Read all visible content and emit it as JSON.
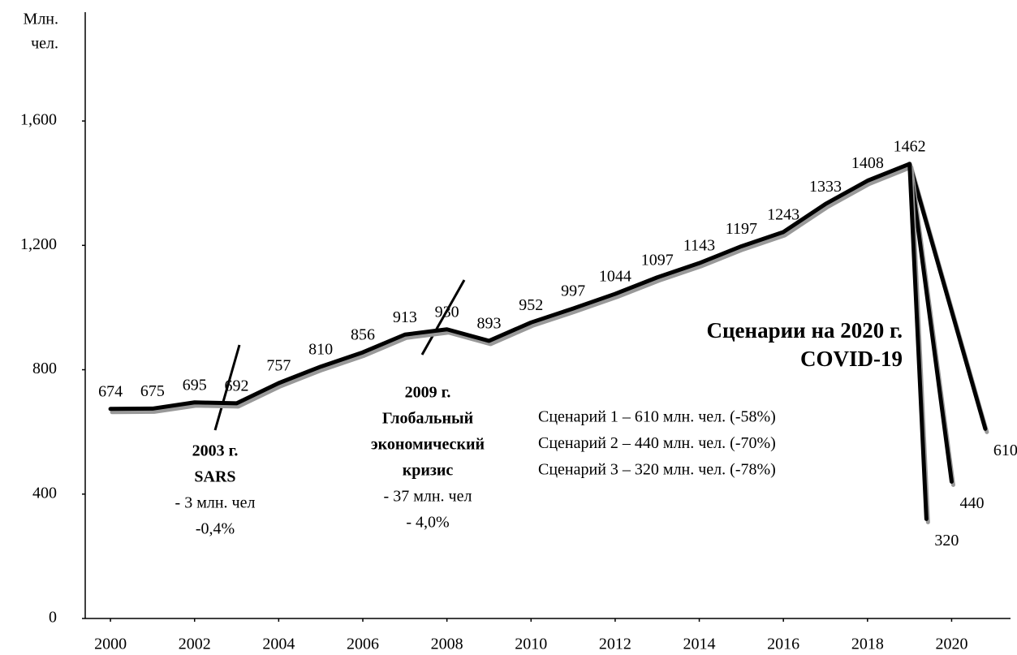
{
  "chart_data": {
    "type": "line",
    "ylabel": [
      "Млн.",
      "чел."
    ],
    "x": [
      2000,
      2001,
      2002,
      2003,
      2004,
      2005,
      2006,
      2007,
      2008,
      2009,
      2010,
      2011,
      2012,
      2013,
      2014,
      2015,
      2016,
      2017,
      2018,
      2019
    ],
    "series": [
      {
        "color": "#000000",
        "values": [
          674,
          675,
          695,
          692,
          757,
          810,
          856,
          913,
          930,
          893,
          952,
          997,
          1044,
          1097,
          1143,
          1197,
          1243,
          1333,
          1408,
          1462
        ]
      }
    ],
    "scenarios": [
      {
        "x": 2020.8,
        "value": 610,
        "label": "Сценарий 1 – 610 млн. чел. (-58%)"
      },
      {
        "x": 2020.0,
        "value": 440,
        "label": "Сценарий 2 – 440 млн. чел. (-70%)"
      },
      {
        "x": 2019.4,
        "value": 320,
        "label": "Сценарий 3 – 320 млн. чел. (-78%)"
      }
    ],
    "scenario_title": [
      "Сценарии на 2020 г.",
      "COVID-19"
    ],
    "annotations": [
      {
        "bold": [
          "2003 г.",
          "SARS"
        ],
        "text": [
          "- 3 млн. чел",
          "-0,4%"
        ]
      },
      {
        "bold": [
          "2009 г.",
          "Глобальный",
          "экономический",
          "кризис"
        ],
        "text": [
          "- 37 млн. чел",
          "- 4,0%"
        ]
      }
    ],
    "xlim": [
      1999.4,
      2021.4
    ],
    "xticks": [
      2000,
      2002,
      2004,
      2006,
      2008,
      2010,
      2012,
      2014,
      2016,
      2018,
      2020
    ],
    "ylim": [
      0,
      1950
    ],
    "yticks": [
      0,
      400,
      800,
      {
        "value": 1200,
        "label": "1,200"
      },
      {
        "value": 1600,
        "label": "1,600"
      }
    ],
    "grid": false
  }
}
